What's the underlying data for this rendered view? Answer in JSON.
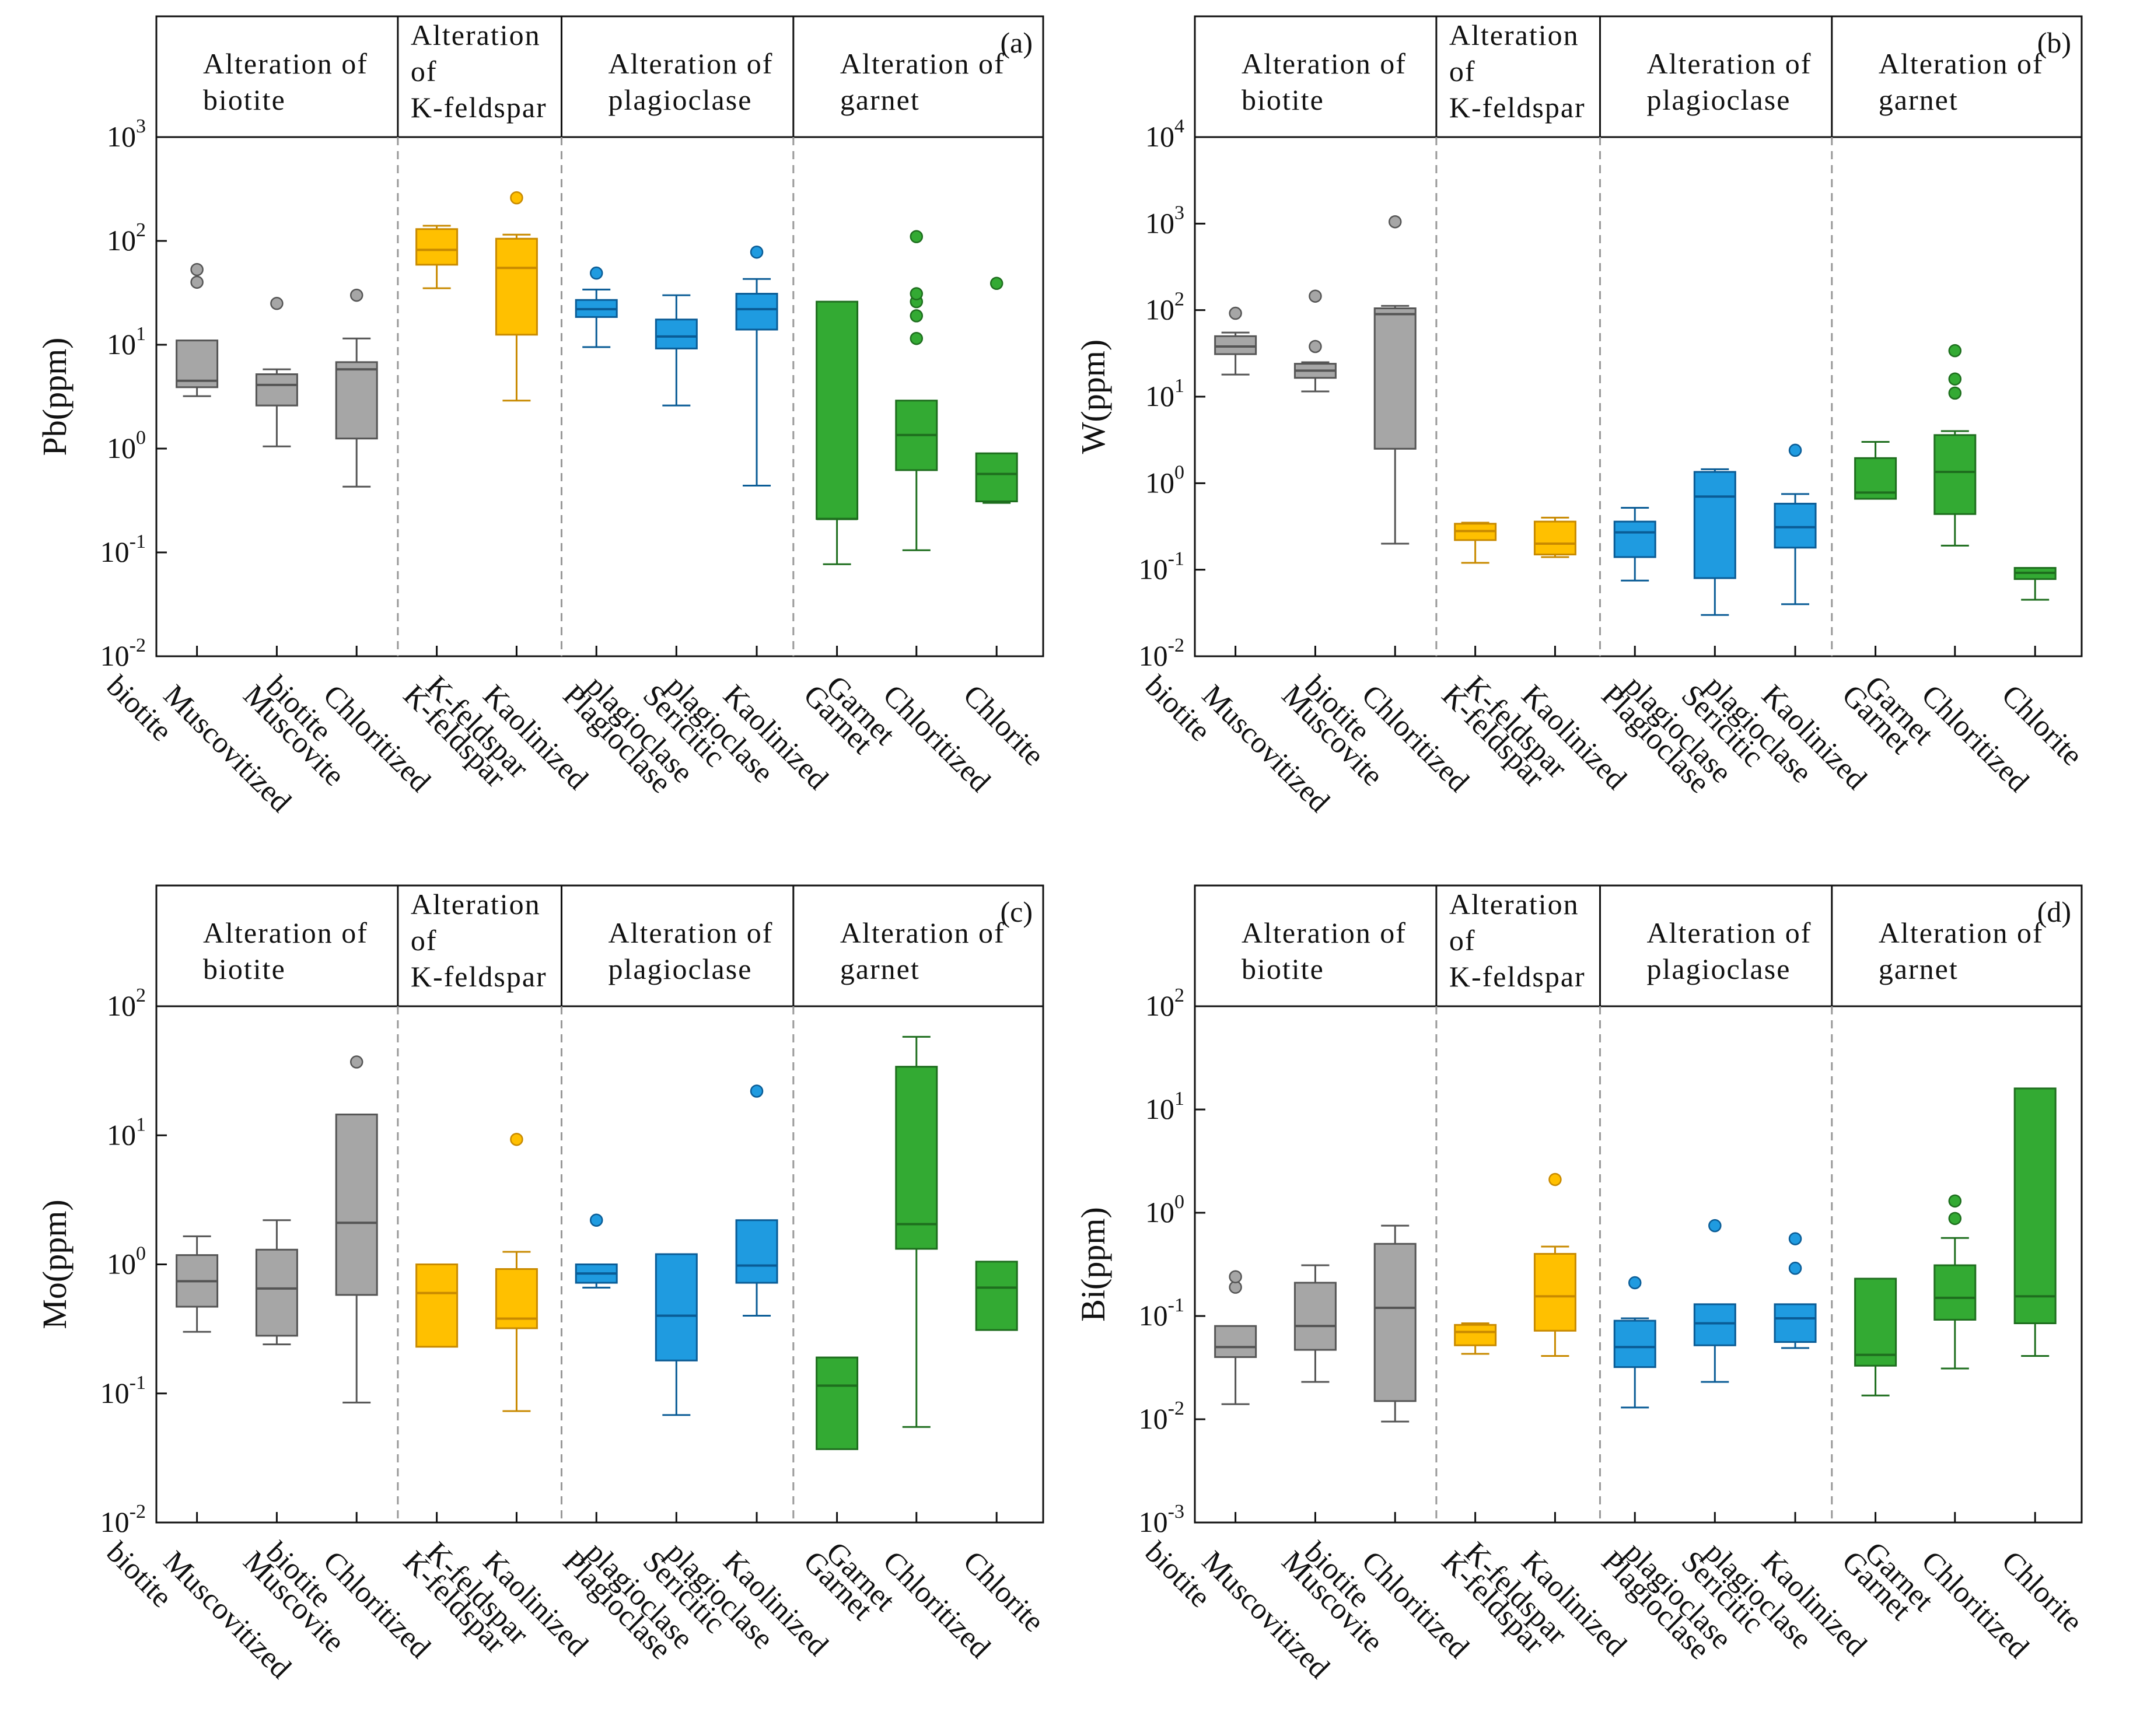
{
  "colors": {
    "gray": {
      "fill": "#a6a6a6",
      "stroke": "#555555"
    },
    "orange": {
      "fill": "#ffc000",
      "stroke": "#c88a00"
    },
    "blue": {
      "fill": "#1f9be0",
      "stroke": "#0a5c96"
    },
    "green": {
      "fill": "#33aa33",
      "stroke": "#1e6e1e"
    },
    "axis": "#111111",
    "separator": "#999999"
  },
  "categories": [
    [
      "Muscovitized",
      "biotite"
    ],
    [
      "Muscovite"
    ],
    [
      "Chloritized",
      "biotite"
    ],
    [
      "K-feldspar"
    ],
    [
      "Kaolinized",
      "K-feldspar"
    ],
    [
      "Plagioclase"
    ],
    [
      "Sericitic",
      "plagioclase"
    ],
    [
      "Kaolinized",
      "plagioclase"
    ],
    [
      "Garnet"
    ],
    [
      "Chloritized",
      "Garnet"
    ],
    [
      "Chlorite"
    ]
  ],
  "category_colors": [
    "gray",
    "gray",
    "gray",
    "orange",
    "orange",
    "blue",
    "blue",
    "blue",
    "green",
    "green",
    "green"
  ],
  "groups": [
    {
      "lines": [
        "Alteration of",
        "biotite"
      ],
      "start": 0,
      "end": 2
    },
    {
      "lines": [
        "Alteration",
        "of",
        "K-feldspar"
      ],
      "start": 3,
      "end": 4
    },
    {
      "lines": [
        "Alteration of",
        "plagioclase"
      ],
      "start": 5,
      "end": 7
    },
    {
      "lines": [
        "Alteration of",
        "garnet"
      ],
      "start": 8,
      "end": 10
    }
  ],
  "chart_data": [
    {
      "type": "box",
      "panel_label": "(a)",
      "ylabel": "Pb(ppm)",
      "yscale": "log",
      "ylim_exp": [
        -2,
        3
      ],
      "boxes": [
        {
          "min": 3.2,
          "q1": 3.9,
          "median": 4.5,
          "q3": 11,
          "max": 11,
          "outliers": [
            40,
            53
          ]
        },
        {
          "min": 1.05,
          "q1": 2.6,
          "median": 4.1,
          "q3": 5.2,
          "max": 5.8,
          "outliers": [
            25
          ]
        },
        {
          "min": 0.43,
          "q1": 1.25,
          "median": 5.8,
          "q3": 6.8,
          "max": 11.5,
          "outliers": [
            30
          ]
        },
        {
          "min": 35,
          "q1": 59,
          "median": 82,
          "q3": 130,
          "max": 140,
          "outliers": []
        },
        {
          "min": 2.9,
          "q1": 12.5,
          "median": 55,
          "q3": 105,
          "max": 115,
          "outliers": [
            260
          ]
        },
        {
          "min": 9.5,
          "q1": 18.5,
          "median": 22,
          "q3": 27,
          "max": 34,
          "outliers": [
            49
          ]
        },
        {
          "min": 2.6,
          "q1": 9.2,
          "median": 12,
          "q3": 17.5,
          "max": 30,
          "outliers": []
        },
        {
          "min": 0.44,
          "q1": 14,
          "median": 22,
          "q3": 31,
          "max": 43,
          "outliers": [
            78
          ]
        },
        {
          "min": 0.077,
          "q1": 0.21,
          "median": 0.21,
          "q3": 26,
          "max": 26,
          "outliers": []
        },
        {
          "min": 0.105,
          "q1": 0.62,
          "median": 1.35,
          "q3": 2.9,
          "max": 2.9,
          "outliers": [
            11.5,
            19,
            26,
            31,
            110
          ]
        },
        {
          "min": 0.3,
          "q1": 0.31,
          "median": 0.57,
          "q3": 0.9,
          "max": 0.9,
          "outliers": [
            39
          ]
        }
      ]
    },
    {
      "type": "box",
      "panel_label": "(b)",
      "ylabel": "W(ppm)",
      "yscale": "log",
      "ylim_exp": [
        -2,
        4
      ],
      "boxes": [
        {
          "min": 18,
          "q1": 31,
          "median": 38,
          "q3": 50,
          "max": 55,
          "outliers": [
            92
          ]
        },
        {
          "min": 11.5,
          "q1": 16.5,
          "median": 20,
          "q3": 24,
          "max": 25,
          "outliers": [
            38,
            145
          ]
        },
        {
          "min": 0.2,
          "q1": 2.5,
          "median": 90,
          "q3": 105,
          "max": 112,
          "outliers": [
            1050
          ]
        },
        {
          "min": 0.12,
          "q1": 0.22,
          "median": 0.28,
          "q3": 0.34,
          "max": 0.35,
          "outliers": []
        },
        {
          "min": 0.14,
          "q1": 0.15,
          "median": 0.2,
          "q3": 0.36,
          "max": 0.4,
          "outliers": []
        },
        {
          "min": 0.075,
          "q1": 0.14,
          "median": 0.27,
          "q3": 0.36,
          "max": 0.52,
          "outliers": []
        },
        {
          "min": 0.03,
          "q1": 0.08,
          "median": 0.7,
          "q3": 1.35,
          "max": 1.45,
          "outliers": []
        },
        {
          "min": 0.04,
          "q1": 0.18,
          "median": 0.31,
          "q3": 0.58,
          "max": 0.75,
          "outliers": [
            2.4
          ]
        },
        {
          "min": 0.66,
          "q1": 0.66,
          "median": 0.78,
          "q3": 1.95,
          "max": 3.0,
          "outliers": []
        },
        {
          "min": 0.19,
          "q1": 0.44,
          "median": 1.35,
          "q3": 3.6,
          "max": 4.0,
          "outliers": [
            11,
            16,
            34
          ]
        },
        {
          "min": 0.045,
          "q1": 0.078,
          "median": 0.092,
          "q3": 0.105,
          "max": 0.105,
          "outliers": []
        }
      ]
    },
    {
      "type": "box",
      "panel_label": "(c)",
      "ylabel": "Mo(ppm)",
      "yscale": "log",
      "ylim_exp": [
        -2,
        2
      ],
      "boxes": [
        {
          "min": 0.3,
          "q1": 0.47,
          "median": 0.74,
          "q3": 1.18,
          "max": 1.65,
          "outliers": []
        },
        {
          "min": 0.24,
          "q1": 0.28,
          "median": 0.65,
          "q3": 1.3,
          "max": 2.2,
          "outliers": []
        },
        {
          "min": 0.085,
          "q1": 0.58,
          "median": 2.1,
          "q3": 14.5,
          "max": 14.5,
          "outliers": [
            37
          ]
        },
        {
          "min": 0.23,
          "q1": 0.23,
          "median": 0.6,
          "q3": 1.0,
          "max": 1.0,
          "outliers": []
        },
        {
          "min": 0.073,
          "q1": 0.32,
          "median": 0.38,
          "q3": 0.92,
          "max": 1.25,
          "outliers": [
            9.3
          ]
        },
        {
          "min": 0.66,
          "q1": 0.72,
          "median": 0.85,
          "q3": 1.0,
          "max": 1.0,
          "outliers": [
            2.2
          ]
        },
        {
          "min": 0.068,
          "q1": 0.18,
          "median": 0.4,
          "q3": 1.2,
          "max": 1.2,
          "outliers": []
        },
        {
          "min": 0.4,
          "q1": 0.72,
          "median": 0.98,
          "q3": 2.2,
          "max": 2.2,
          "outliers": [
            22
          ]
        },
        {
          "min": 0.037,
          "q1": 0.037,
          "median": 0.115,
          "q3": 0.19,
          "max": 0.19,
          "outliers": []
        },
        {
          "min": 0.055,
          "q1": 1.32,
          "median": 2.05,
          "q3": 34,
          "max": 58,
          "outliers": []
        },
        {
          "min": 0.31,
          "q1": 0.31,
          "median": 0.66,
          "q3": 1.05,
          "max": 1.05,
          "outliers": []
        }
      ]
    },
    {
      "type": "box",
      "panel_label": "(d)",
      "ylabel": "Bi(ppm)",
      "yscale": "log",
      "ylim_exp": [
        -3,
        2
      ],
      "boxes": [
        {
          "min": 0.014,
          "q1": 0.04,
          "median": 0.05,
          "q3": 0.08,
          "max": 0.08,
          "outliers": [
            0.19,
            0.24
          ]
        },
        {
          "min": 0.023,
          "q1": 0.047,
          "median": 0.08,
          "q3": 0.21,
          "max": 0.31,
          "outliers": []
        },
        {
          "min": 0.0095,
          "q1": 0.015,
          "median": 0.12,
          "q3": 0.5,
          "max": 0.75,
          "outliers": []
        },
        {
          "min": 0.043,
          "q1": 0.052,
          "median": 0.07,
          "q3": 0.082,
          "max": 0.085,
          "outliers": []
        },
        {
          "min": 0.041,
          "q1": 0.072,
          "median": 0.155,
          "q3": 0.4,
          "max": 0.47,
          "outliers": [
            2.1
          ]
        },
        {
          "min": 0.013,
          "q1": 0.032,
          "median": 0.05,
          "q3": 0.09,
          "max": 0.095,
          "outliers": [
            0.21
          ]
        },
        {
          "min": 0.023,
          "q1": 0.052,
          "median": 0.085,
          "q3": 0.13,
          "max": 0.13,
          "outliers": [
            0.75
          ]
        },
        {
          "min": 0.049,
          "q1": 0.056,
          "median": 0.095,
          "q3": 0.13,
          "max": 0.13,
          "outliers": [
            0.29,
            0.56
          ]
        },
        {
          "min": 0.017,
          "q1": 0.033,
          "median": 0.042,
          "q3": 0.23,
          "max": 0.23,
          "outliers": []
        },
        {
          "min": 0.031,
          "q1": 0.092,
          "median": 0.15,
          "q3": 0.31,
          "max": 0.57,
          "outliers": [
            0.88,
            1.3
          ]
        },
        {
          "min": 0.041,
          "q1": 0.085,
          "median": 0.155,
          "q3": 16,
          "max": 16,
          "outliers": []
        }
      ]
    }
  ]
}
